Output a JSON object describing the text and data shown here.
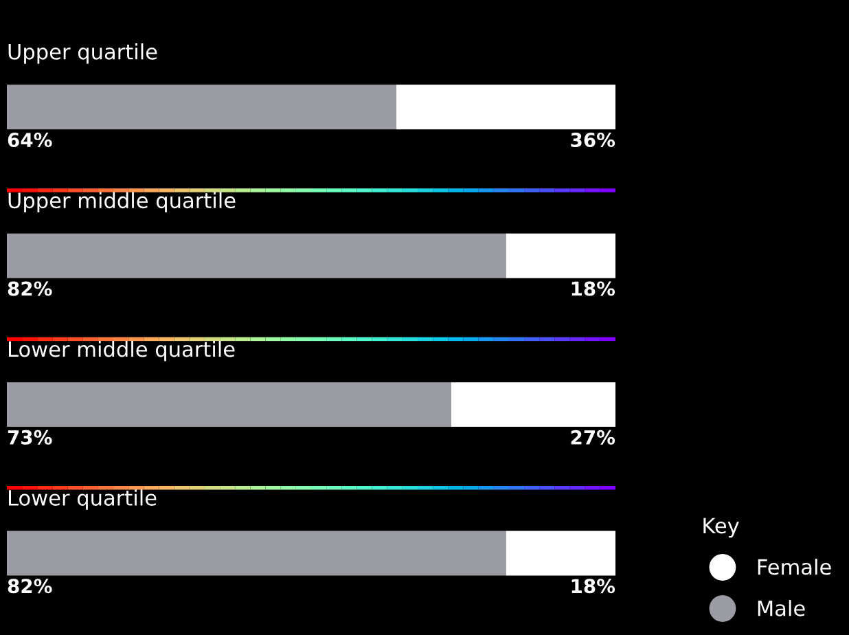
{
  "chart_data": {
    "type": "bar",
    "orientation": "horizontal",
    "stacked": true,
    "categories": [
      "Upper quartile",
      "Upper middle quartile",
      "Lower middle quartile",
      "Lower quartile"
    ],
    "series": [
      {
        "name": "Male",
        "color": "#9a9ba3",
        "values": [
          64,
          82,
          73,
          82
        ],
        "value_labels": [
          "64%",
          "82%",
          "73%",
          "82%"
        ]
      },
      {
        "name": "Female",
        "color": "#ffffff",
        "values": [
          36,
          18,
          27,
          18
        ],
        "value_labels": [
          "36%",
          "18%",
          "27%",
          "18%"
        ]
      }
    ],
    "legend": "bottom right",
    "legend_title": "Key"
  }
}
